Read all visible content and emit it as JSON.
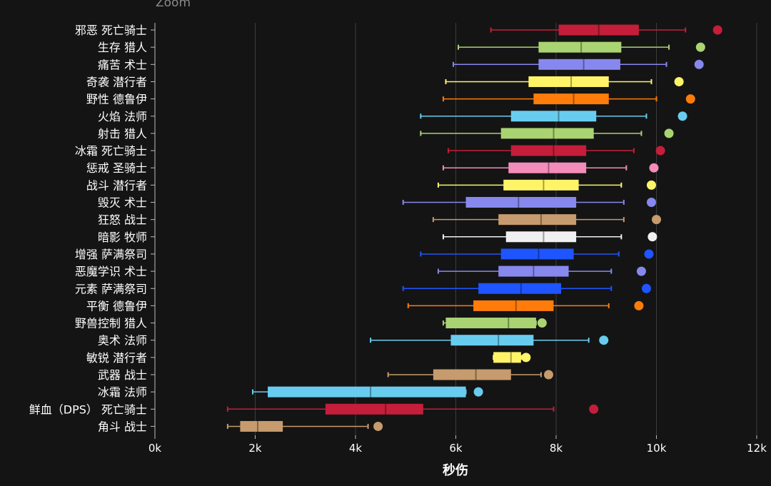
{
  "zoom_label": "Zoom",
  "chart_data": {
    "type": "box",
    "orientation": "horizontal",
    "xlabel": "秒伤",
    "xlim": [
      0,
      12000
    ],
    "xticks": [
      0,
      2000,
      4000,
      6000,
      8000,
      10000,
      12000
    ],
    "xtick_labels": [
      "0k",
      "2k",
      "4k",
      "6k",
      "8k",
      "10k",
      "12k"
    ],
    "grid": true,
    "legend": "none",
    "series": [
      {
        "name": "邪恶 死亡骑士",
        "color": "#C41E3A",
        "whisker_low": 6700,
        "q1": 8050,
        "median": 8850,
        "q3": 9650,
        "whisker_high": 10580,
        "outlier": 11220
      },
      {
        "name": "生存 猎人",
        "color": "#AAD372",
        "whisker_low": 6050,
        "q1": 7650,
        "median": 8500,
        "q3": 9300,
        "whisker_high": 10250,
        "outlier": 10880
      },
      {
        "name": "痛苦 术士",
        "color": "#8788EE",
        "whisker_low": 5950,
        "q1": 7650,
        "median": 8550,
        "q3": 9280,
        "whisker_high": 10200,
        "outlier": 10850
      },
      {
        "name": "奇袭 潜行者",
        "color": "#FFF468",
        "whisker_low": 5800,
        "q1": 7450,
        "median": 8300,
        "q3": 9050,
        "whisker_high": 9900,
        "outlier": 10450
      },
      {
        "name": "野性 德鲁伊",
        "color": "#FF7C0A",
        "whisker_low": 5750,
        "q1": 7550,
        "median": 8350,
        "q3": 9050,
        "whisker_high": 10000,
        "outlier": 10680
      },
      {
        "name": "火焰 法师",
        "color": "#68CCEF",
        "whisker_low": 5300,
        "q1": 7100,
        "median": 8050,
        "q3": 8800,
        "whisker_high": 9800,
        "outlier": 10520
      },
      {
        "name": "射击 猎人",
        "color": "#AAD372",
        "whisker_low": 5300,
        "q1": 6900,
        "median": 7950,
        "q3": 8750,
        "whisker_high": 9700,
        "outlier": 10250
      },
      {
        "name": "冰霜 死亡骑士",
        "color": "#C41E3A",
        "whisker_low": 5850,
        "q1": 7100,
        "median": 7950,
        "q3": 8600,
        "whisker_high": 9550,
        "outlier": 10080
      },
      {
        "name": "惩戒 圣骑士",
        "color": "#F48CBA",
        "whisker_low": 5750,
        "q1": 7050,
        "median": 7850,
        "q3": 8600,
        "whisker_high": 9400,
        "outlier": 9950
      },
      {
        "name": "战斗 潜行者",
        "color": "#FFF468",
        "whisker_low": 5650,
        "q1": 6950,
        "median": 7750,
        "q3": 8450,
        "whisker_high": 9300,
        "outlier": 9900
      },
      {
        "name": "毁灭 术士",
        "color": "#8788EE",
        "whisker_low": 4950,
        "q1": 6200,
        "median": 7250,
        "q3": 8400,
        "whisker_high": 9350,
        "outlier": 9900
      },
      {
        "name": "狂怒 战士",
        "color": "#C69B6D",
        "whisker_low": 5550,
        "q1": 6850,
        "median": 7700,
        "q3": 8400,
        "whisker_high": 9350,
        "outlier": 10000
      },
      {
        "name": "暗影 牧师",
        "color": "#F0F0F0",
        "whisker_low": 5750,
        "q1": 7000,
        "median": 7750,
        "q3": 8400,
        "whisker_high": 9300,
        "outlier": 9920
      },
      {
        "name": "增强 萨满祭司",
        "color": "#1F55FF",
        "whisker_low": 5300,
        "q1": 6900,
        "median": 7650,
        "q3": 8350,
        "whisker_high": 9250,
        "outlier": 9850
      },
      {
        "name": "恶魔学识 术士",
        "color": "#8788EE",
        "whisker_low": 5650,
        "q1": 6850,
        "median": 7550,
        "q3": 8250,
        "whisker_high": 9100,
        "outlier": 9700
      },
      {
        "name": "元素 萨满祭司",
        "color": "#1F55FF",
        "whisker_low": 4950,
        "q1": 6450,
        "median": 7300,
        "q3": 8100,
        "whisker_high": 9100,
        "outlier": 9800
      },
      {
        "name": "平衡 德鲁伊",
        "color": "#FF7C0A",
        "whisker_low": 5050,
        "q1": 6350,
        "median": 7200,
        "q3": 7950,
        "whisker_high": 9050,
        "outlier": 9650
      },
      {
        "name": "野兽控制 猎人",
        "color": "#AAD372",
        "whisker_low": 5750,
        "q1": 5800,
        "median": 7050,
        "q3": 7600,
        "whisker_high": 7600,
        "outlier": 7720
      },
      {
        "name": "奥术 法师",
        "color": "#68CCEF",
        "whisker_low": 4300,
        "q1": 5900,
        "median": 6850,
        "q3": 7550,
        "whisker_high": 8650,
        "outlier": 8950
      },
      {
        "name": "敏锐 潜行者",
        "color": "#FFF468",
        "whisker_low": 6750,
        "q1": 6750,
        "median": 7100,
        "q3": 7300,
        "whisker_high": 7300,
        "outlier": 7400
      },
      {
        "name": "武器 战士",
        "color": "#C69B6D",
        "whisker_low": 4650,
        "q1": 5550,
        "median": 6400,
        "q3": 7100,
        "whisker_high": 7700,
        "outlier": 7850
      },
      {
        "name": "冰霜 法师",
        "color": "#68CCEF",
        "whisker_low": 1950,
        "q1": 2250,
        "median": 4300,
        "q3": 6200,
        "whisker_high": 6200,
        "outlier": 6450
      },
      {
        "name": "鲜血（DPS） 死亡骑士",
        "color": "#C41E3A",
        "whisker_low": 1450,
        "q1": 3400,
        "median": 4600,
        "q3": 5350,
        "whisker_high": 7950,
        "outlier": 8750
      },
      {
        "name": "角斗 战士",
        "color": "#C69B6D",
        "whisker_low": 1450,
        "q1": 1700,
        "median": 2050,
        "q3": 2550,
        "whisker_high": 4250,
        "outlier": 4450
      }
    ]
  }
}
